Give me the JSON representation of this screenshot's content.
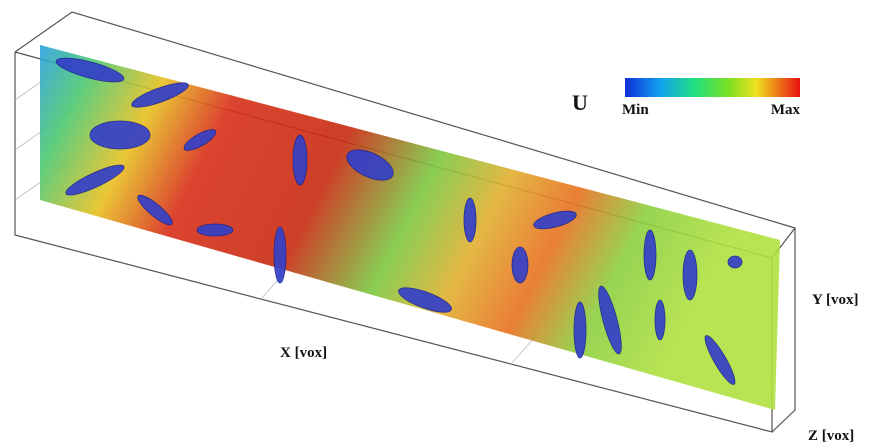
{
  "colorbar": {
    "title": "U",
    "min_label": "Min",
    "max_label": "Max"
  },
  "axes": {
    "x_label": "X [vox]",
    "y_label": "Y [vox]",
    "z_label": "Z [vox]"
  }
}
